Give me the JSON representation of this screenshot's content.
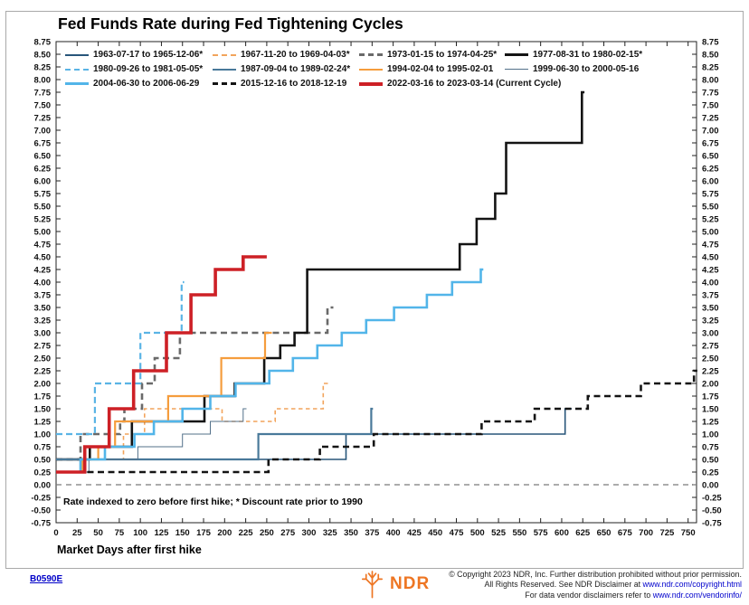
{
  "page": {
    "title": "Fed Funds Rate during Fed Tightening Cycles"
  },
  "chart_data": {
    "type": "line",
    "subtype": "step",
    "title": "Fed Funds Rate during Fed Tightening Cycles",
    "xlabel": "Market Days after first hike",
    "ylabel": "",
    "xlim": [
      0,
      760
    ],
    "ylim": [
      -0.75,
      8.75
    ],
    "grid": "zero-line-only",
    "legend_position": "top-inside",
    "annotation": "Rate indexed to zero before first hike; * Discount rate prior to 1990",
    "x_ticks": [
      0,
      25,
      50,
      75,
      100,
      125,
      150,
      175,
      200,
      225,
      250,
      275,
      300,
      325,
      350,
      375,
      400,
      425,
      450,
      475,
      500,
      525,
      550,
      575,
      600,
      625,
      650,
      675,
      700,
      725,
      750
    ],
    "y_ticks": [
      8.75,
      8.5,
      8.25,
      8.0,
      7.75,
      7.5,
      7.25,
      7.0,
      6.75,
      6.5,
      6.25,
      6.0,
      5.75,
      5.5,
      5.25,
      5.0,
      4.75,
      4.5,
      4.25,
      4.0,
      3.75,
      3.5,
      3.25,
      3.0,
      2.75,
      2.5,
      2.25,
      2.0,
      1.75,
      1.5,
      1.25,
      1.0,
      0.75,
      0.5,
      0.25,
      0.0,
      -0.25,
      -0.5,
      -0.75
    ],
    "y_axis_sides": [
      "left",
      "right"
    ],
    "zero_line_value": 0.0,
    "series": [
      {
        "label": "1963-07-17 to 1965-12-06*",
        "color": "#28567a",
        "style": "solid",
        "width": 1.6,
        "points": [
          [
            0,
            0.5
          ],
          [
            344,
            1.0
          ],
          [
            604,
            1.5
          ]
        ],
        "end": 612
      },
      {
        "label": "1967-11-20 to 1969-04-03*",
        "color": "#f2a45c",
        "style": "dashed",
        "dash": "4.5 3.5",
        "width": 1.6,
        "points": [
          [
            0,
            0.5
          ],
          [
            80,
            1.0
          ],
          [
            105,
            1.5
          ],
          [
            197,
            1.25
          ],
          [
            260,
            1.5
          ],
          [
            317,
            2.0
          ]
        ],
        "end": 325
      },
      {
        "label": "1973-01-15 to 1974-04-25*",
        "color": "#6a6a6a",
        "style": "dashed",
        "dash": "7 4.5",
        "width": 2.6,
        "points": [
          [
            0,
            0.5
          ],
          [
            29,
            1.0
          ],
          [
            76,
            1.25
          ],
          [
            81,
            1.5
          ],
          [
            102,
            2.0
          ],
          [
            117,
            2.5
          ],
          [
            147,
            3.0
          ],
          [
            322,
            3.5
          ]
        ],
        "end": 329
      },
      {
        "label": "1977-08-31 to 1980-02-15*",
        "color": "#141414",
        "style": "solid",
        "width": 2.6,
        "points": [
          [
            0,
            0.5
          ],
          [
            40,
            0.75
          ],
          [
            90,
            1.25
          ],
          [
            176,
            1.75
          ],
          [
            212,
            2.0
          ],
          [
            247,
            2.5
          ],
          [
            266,
            2.75
          ],
          [
            283,
            3.0
          ],
          [
            298,
            4.25
          ],
          [
            479,
            4.75
          ],
          [
            499,
            5.25
          ],
          [
            521,
            5.75
          ],
          [
            534,
            6.75
          ],
          [
            624,
            7.75
          ]
        ],
        "end": 627
      },
      {
        "label": "1980-09-26 to 1981-05-05*",
        "color": "#5ab4e5",
        "style": "dashed",
        "dash": "7 4",
        "width": 2.2,
        "points": [
          [
            0,
            1.0
          ],
          [
            46,
            2.0
          ],
          [
            100,
            3.0
          ],
          [
            149,
            4.0
          ]
        ],
        "end": 152
      },
      {
        "label": "1987-09-04 to 1989-02-24*",
        "color": "#49799a",
        "style": "solid",
        "width": 2.2,
        "points": [
          [
            0,
            0.5
          ],
          [
            240,
            1.0
          ],
          [
            374,
            1.5
          ]
        ],
        "end": 376
      },
      {
        "label": "1994-02-04 to 1995-02-01",
        "color": "#f59d3d",
        "style": "solid",
        "width": 2.2,
        "points": [
          [
            0,
            0.25
          ],
          [
            31,
            0.5
          ],
          [
            50,
            0.75
          ],
          [
            70,
            1.25
          ],
          [
            133,
            1.75
          ],
          [
            196,
            2.5
          ],
          [
            248,
            3.0
          ]
        ],
        "end": 256
      },
      {
        "label": "1999-06-30 to 2000-05-16",
        "color": "#53718a",
        "style": "solid",
        "width": 1.0,
        "points": [
          [
            0,
            0.25
          ],
          [
            39,
            0.5
          ],
          [
            97,
            0.75
          ],
          [
            150,
            1.0
          ],
          [
            183,
            1.25
          ],
          [
            222,
            1.5
          ]
        ],
        "end": 226
      },
      {
        "label": "2004-06-30 to 2006-06-29",
        "color": "#52b5e9",
        "style": "solid",
        "width": 2.6,
        "points": [
          [
            0,
            0.25
          ],
          [
            29,
            0.5
          ],
          [
            58,
            0.75
          ],
          [
            93,
            1.0
          ],
          [
            116,
            1.25
          ],
          [
            150,
            1.5
          ],
          [
            183,
            1.75
          ],
          [
            213,
            2.0
          ],
          [
            253,
            2.25
          ],
          [
            281,
            2.5
          ],
          [
            310,
            2.75
          ],
          [
            339,
            3.0
          ],
          [
            368,
            3.25
          ],
          [
            401,
            3.5
          ],
          [
            440,
            3.75
          ],
          [
            470,
            4.0
          ],
          [
            504,
            4.25
          ]
        ],
        "end": 507
      },
      {
        "label": "2015-12-16 to 2018-12-19",
        "color": "#141414",
        "style": "dashed",
        "dash": "7 4.5",
        "width": 2.6,
        "points": [
          [
            0,
            0.25
          ],
          [
            252,
            0.5
          ],
          [
            313,
            0.75
          ],
          [
            377,
            1.0
          ],
          [
            505,
            1.25
          ],
          [
            568,
            1.5
          ],
          [
            631,
            1.75
          ],
          [
            694,
            2.0
          ],
          [
            757,
            2.25
          ]
        ],
        "end": 761
      },
      {
        "label": "2022-03-16 to 2023-03-14 (Current Cycle)",
        "color": "#cd2026",
        "style": "solid",
        "width": 3.6,
        "points": [
          [
            0,
            0.25
          ],
          [
            34,
            0.75
          ],
          [
            63,
            1.5
          ],
          [
            92,
            2.25
          ],
          [
            131,
            3.0
          ],
          [
            160,
            3.75
          ],
          [
            189,
            4.25
          ],
          [
            222,
            4.5
          ]
        ],
        "end": 250
      }
    ]
  },
  "footer": {
    "chart_code": "B0590E",
    "logo_text": "NDR",
    "logo_color": "#ee7623",
    "copyright_line1": "© Copyright 2023 NDR, Inc. Further distribution prohibited without prior permission.",
    "copyright_line2_prefix": "All Rights Reserved. See NDR Disclaimer at ",
    "copyright_line2_link": "www.ndr.com/copyright.html",
    "copyright_line3_prefix": "For data vendor disclaimers refer to ",
    "copyright_line3_link": "www.ndr.com/vendorinfo/"
  }
}
